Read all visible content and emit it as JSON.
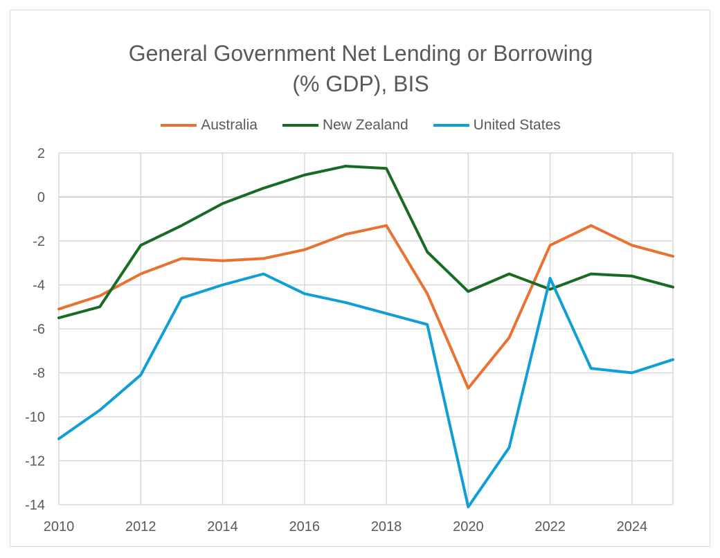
{
  "chart_data": {
    "type": "line",
    "title": "General Government Net Lending or Borrowing\n(% GDP), BIS",
    "xlabel": "",
    "ylabel": "",
    "x": [
      2010,
      2011,
      2012,
      2013,
      2014,
      2015,
      2016,
      2017,
      2018,
      2019,
      2020,
      2021,
      2022,
      2023,
      2024,
      2025
    ],
    "xlim": [
      2010,
      2025
    ],
    "ylim": [
      -14,
      2
    ],
    "x_ticks": [
      "2010",
      "2012",
      "2014",
      "2016",
      "2018",
      "2020",
      "2022",
      "2024"
    ],
    "y_ticks": [
      "2",
      "0",
      "-2",
      "-4",
      "-6",
      "-8",
      "-10",
      "-12",
      "-14"
    ],
    "grid": true,
    "legend_position": "top",
    "series": [
      {
        "name": "Australia",
        "color": "#e97132",
        "values": [
          -5.1,
          -4.5,
          -3.5,
          -2.8,
          -2.9,
          -2.8,
          -2.4,
          -1.7,
          -1.3,
          -4.4,
          -8.7,
          -6.4,
          -2.2,
          -1.3,
          -2.2,
          -2.7
        ]
      },
      {
        "name": "New Zealand",
        "color": "#196b24",
        "values": [
          -5.5,
          -5.0,
          -2.2,
          -1.3,
          -0.3,
          0.4,
          1.0,
          1.4,
          1.3,
          -2.5,
          -4.3,
          -3.5,
          -4.2,
          -3.5,
          -3.6,
          -4.1
        ]
      },
      {
        "name": "United States",
        "color": "#0f9ed5",
        "values": [
          -11.0,
          -9.7,
          -8.1,
          -4.6,
          -4.0,
          -3.5,
          -4.4,
          -4.8,
          -5.3,
          -5.8,
          -14.1,
          -11.4,
          -3.7,
          -7.8,
          -8.0,
          -7.4
        ]
      }
    ]
  }
}
